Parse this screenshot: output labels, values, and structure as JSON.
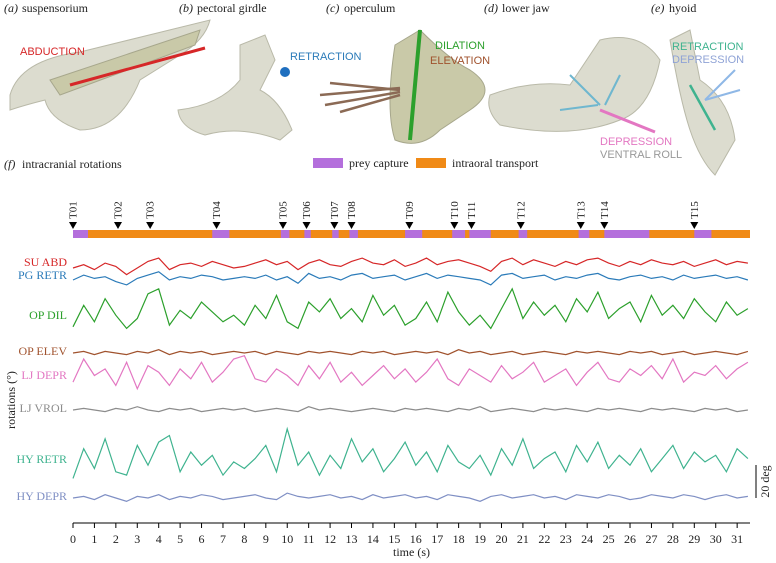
{
  "panels": [
    {
      "letter": "(a)",
      "name": "suspensorium",
      "annotations": [
        {
          "text": "ABDUCTION",
          "color": "#d62728"
        }
      ]
    },
    {
      "letter": "(b)",
      "name": "pectoral girdle",
      "annotations": [
        {
          "text": "RETRACTION",
          "color": "#2b7bb9"
        }
      ]
    },
    {
      "letter": "(c)",
      "name": "operculum",
      "annotations": [
        {
          "text": "DILATION",
          "color": "#2ca02c"
        },
        {
          "text": "ELEVATION",
          "color": "#a0522d"
        }
      ]
    },
    {
      "letter": "(d)",
      "name": "lower jaw",
      "annotations": [
        {
          "text": "DEPRESSION",
          "color": "#e377c2"
        },
        {
          "text": "VENTRAL ROLL",
          "color": "#999999"
        }
      ]
    },
    {
      "letter": "(e)",
      "name": "hyoid",
      "annotations": [
        {
          "text": "RETRACTION",
          "color": "#3fb38f"
        },
        {
          "text": "DEPRESSION",
          "color": "#8fa3d6"
        }
      ]
    }
  ],
  "chart_data": {
    "type": "line",
    "letter": "(f)",
    "title": "intracranial rotations",
    "xlabel": "time (s)",
    "ylabel": "rotations (°)",
    "xlim": [
      0,
      31.6
    ],
    "xticks": [
      0,
      1,
      2,
      3,
      4,
      5,
      6,
      7,
      8,
      9,
      10,
      11,
      12,
      13,
      14,
      15,
      16,
      17,
      18,
      19,
      20,
      21,
      22,
      23,
      24,
      25,
      26,
      27,
      28,
      29,
      30,
      31
    ],
    "legend": [
      {
        "name": "prey capture",
        "color": "#b46fdc"
      },
      {
        "name": "intraoral transport",
        "color": "#f08a16"
      }
    ],
    "prey_capture": [
      [
        0,
        0.7
      ],
      [
        6.5,
        7.3
      ],
      [
        9.7,
        10.1
      ],
      [
        10.8,
        11.1
      ],
      [
        12.1,
        12.4
      ],
      [
        12.9,
        13.3
      ],
      [
        15.5,
        16.3
      ],
      [
        17.7,
        18.3
      ],
      [
        18.5,
        19.5
      ],
      [
        20.8,
        21.2
      ],
      [
        23.6,
        24.1
      ],
      [
        24.8,
        26.9
      ],
      [
        29.0,
        29.8
      ]
    ],
    "events": {
      "labels": [
        "T01",
        "T02",
        "T03",
        "T04",
        "T05",
        "T06",
        "T07",
        "T08",
        "T09",
        "T10",
        "T11",
        "T12",
        "T13",
        "T14",
        "T15"
      ],
      "x": [
        0,
        2.1,
        3.6,
        6.7,
        9.8,
        10.9,
        12.2,
        13.0,
        15.7,
        17.8,
        18.6,
        20.9,
        23.7,
        24.8,
        29.0
      ]
    },
    "scale_bar": {
      "value": 20,
      "label": "20 deg"
    },
    "x": [
      0,
      0.5,
      1,
      1.5,
      2,
      2.5,
      3,
      3.5,
      4,
      4.5,
      5,
      5.5,
      6,
      6.5,
      7,
      7.5,
      8,
      8.5,
      9,
      9.5,
      10,
      10.5,
      11,
      11.5,
      12,
      12.5,
      13,
      13.5,
      14,
      14.5,
      15,
      15.5,
      16,
      16.5,
      17,
      17.5,
      18,
      18.5,
      19,
      19.5,
      20,
      20.5,
      21,
      21.5,
      22,
      22.5,
      23,
      23.5,
      24,
      24.5,
      25,
      25.5,
      26,
      26.5,
      27,
      27.5,
      28,
      28.5,
      29,
      29.5,
      30,
      30.5,
      31,
      31.5
    ],
    "series": [
      {
        "name": "SU ABD",
        "color": "#d62728",
        "values": [
          0,
          2,
          -1,
          3,
          1,
          -4,
          0,
          4,
          6,
          -1,
          2,
          3,
          1,
          4,
          2,
          0,
          1,
          3,
          5,
          2,
          4,
          -1,
          3,
          5,
          2,
          1,
          4,
          6,
          3,
          2,
          5,
          1,
          3,
          6,
          2,
          4,
          5,
          3,
          1,
          -2,
          4,
          6,
          2,
          5,
          3,
          1,
          4,
          2,
          5,
          6,
          3,
          1,
          4,
          2,
          5,
          3,
          2,
          4,
          1,
          3,
          5,
          2,
          4,
          3
        ]
      },
      {
        "name": "PG RETR",
        "color": "#2b7bb9",
        "values": [
          0,
          3,
          1,
          2,
          -1,
          -3,
          1,
          3,
          5,
          0,
          2,
          1,
          3,
          2,
          0,
          1,
          2,
          1,
          3,
          0,
          2,
          -2,
          4,
          1,
          2,
          0,
          3,
          4,
          1,
          2,
          3,
          0,
          2,
          4,
          1,
          3,
          2,
          1,
          0,
          -3,
          3,
          4,
          1,
          2,
          3,
          0,
          2,
          1,
          3,
          4,
          1,
          0,
          2,
          3,
          1,
          2,
          0,
          3,
          1,
          2,
          3,
          1,
          2,
          0
        ]
      },
      {
        "name": "OP DIL",
        "color": "#2ca02c",
        "values": [
          5,
          18,
          8,
          22,
          12,
          4,
          10,
          25,
          28,
          6,
          15,
          10,
          20,
          14,
          8,
          12,
          6,
          18,
          10,
          24,
          8,
          4,
          20,
          14,
          22,
          10,
          16,
          8,
          24,
          12,
          18,
          6,
          10,
          20,
          8,
          26,
          14,
          6,
          12,
          4,
          16,
          28,
          10,
          20,
          12,
          18,
          8,
          22,
          14,
          26,
          10,
          16,
          20,
          8,
          24,
          12,
          18,
          10,
          22,
          14,
          8,
          20,
          12,
          16
        ]
      },
      {
        "name": "OP ELEV",
        "color": "#a0522d",
        "values": [
          0,
          1,
          -1,
          1,
          0,
          -1,
          1,
          0,
          2,
          -1,
          1,
          0,
          1,
          -1,
          0,
          1,
          0,
          1,
          -1,
          1,
          0,
          -1,
          1,
          0,
          1,
          0,
          -1,
          1,
          0,
          1,
          -1,
          0,
          1,
          0,
          1,
          -1,
          2,
          0,
          1,
          -1,
          0,
          1,
          -1,
          0,
          1,
          0,
          -1,
          1,
          0,
          1,
          0,
          -1,
          1,
          0,
          1,
          -1,
          0,
          1,
          -1,
          0,
          1,
          0,
          -1,
          1
        ]
      },
      {
        "name": "LJ DEPR",
        "color": "#e377c2",
        "values": [
          6,
          20,
          10,
          14,
          4,
          18,
          2,
          16,
          12,
          4,
          14,
          8,
          18,
          6,
          12,
          20,
          22,
          8,
          6,
          14,
          10,
          4,
          16,
          8,
          18,
          6,
          12,
          4,
          10,
          16,
          8,
          14,
          6,
          12,
          20,
          8,
          4,
          14,
          10,
          6,
          16,
          8,
          12,
          18,
          6,
          10,
          14,
          4,
          12,
          18,
          8,
          6,
          14,
          10,
          16,
          8,
          20,
          6,
          12,
          10,
          16,
          8,
          14,
          18
        ]
      },
      {
        "name": "LJ VROL",
        "color": "#8c8c8c",
        "values": [
          0,
          1,
          0,
          -1,
          1,
          0,
          2,
          0,
          -1,
          1,
          0,
          1,
          -1,
          0,
          1,
          0,
          1,
          -1,
          0,
          1,
          0,
          -1,
          2,
          0,
          1,
          0,
          -1,
          0,
          1,
          0,
          -1,
          1,
          0,
          1,
          0,
          -1,
          1,
          0,
          2,
          -1,
          0,
          1,
          0,
          -1,
          1,
          0,
          1,
          0,
          -1,
          1,
          0,
          1,
          0,
          -1,
          1,
          0,
          1,
          0,
          -1,
          1,
          0,
          1,
          -1,
          0
        ]
      },
      {
        "name": "HY RETR",
        "color": "#3fb38f",
        "values": [
          4,
          22,
          10,
          28,
          8,
          6,
          24,
          12,
          26,
          30,
          8,
          20,
          12,
          18,
          6,
          14,
          10,
          16,
          24,
          8,
          34,
          12,
          20,
          6,
          18,
          10,
          28,
          14,
          22,
          8,
          16,
          26,
          12,
          20,
          8,
          24,
          14,
          10,
          18,
          6,
          22,
          12,
          28,
          10,
          16,
          20,
          8,
          24,
          14,
          26,
          10,
          18,
          12,
          22,
          8,
          16,
          24,
          10,
          20,
          14,
          18,
          8,
          22,
          16
        ]
      },
      {
        "name": "HY DEPR",
        "color": "#7f8fc4",
        "values": [
          0,
          1,
          -1,
          2,
          0,
          -2,
          1,
          0,
          2,
          -1,
          1,
          0,
          2,
          1,
          -1,
          0,
          1,
          2,
          0,
          -1,
          3,
          1,
          0,
          1,
          2,
          0,
          1,
          -1,
          2,
          0,
          1,
          2,
          0,
          1,
          -1,
          2,
          1,
          0,
          -2,
          1,
          2,
          0,
          1,
          2,
          0,
          1,
          -1,
          2,
          1,
          0,
          2,
          1,
          -1,
          0,
          2,
          1,
          0,
          2,
          1,
          -1,
          1,
          2,
          0,
          1
        ]
      }
    ]
  }
}
